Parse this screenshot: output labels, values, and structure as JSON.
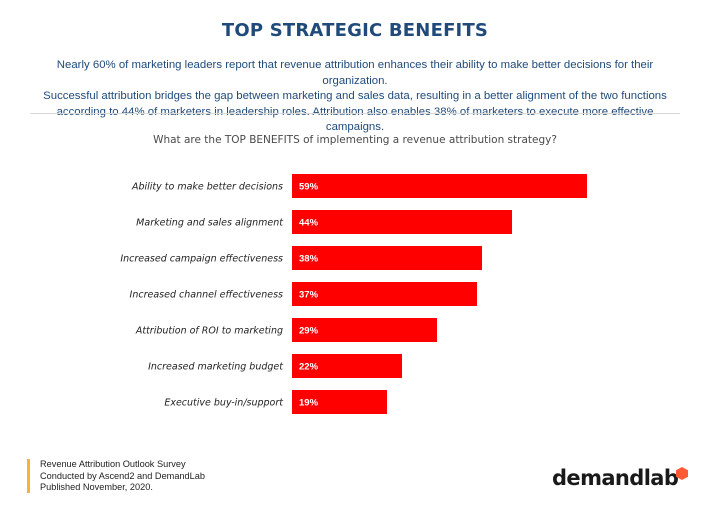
{
  "title": "TOP STRATEGIC BENEFITS",
  "intro": [
    "Nearly 60% of marketing leaders report that revenue attribution enhances their ability to make better decisions for their organization.",
    "Successful attribution bridges the gap between marketing and sales data, resulting in a better alignment of the two functions",
    "according to 44% of marketers in leadership roles. Attribution also enables 38% of marketers to execute more effective campaigns."
  ],
  "footer": {
    "line1": "Revenue Attribution Outlook Survey",
    "line2": "Conducted by Ascend2 and DemandLab",
    "line3": "Published November, 2020."
  },
  "logo_text": "demandlab",
  "colors": {
    "title": "#1f4a7a",
    "bar": "#ff0000",
    "bar_label": "#ffffff",
    "footer_accent": "#f2b632",
    "logo_mark": "#ff5a36"
  },
  "chart_data": {
    "type": "bar",
    "orientation": "horizontal",
    "title": "What are the TOP BENEFITS of implementing a revenue attribution strategy?",
    "categories": [
      "Ability to make better decisions",
      "Marketing and sales alignment",
      "Increased campaign effectiveness",
      "Increased channel effectiveness",
      "Attribution of ROI to marketing",
      "Increased marketing budget",
      "Executive buy-in/support"
    ],
    "values": [
      59,
      44,
      38,
      37,
      29,
      22,
      19
    ],
    "value_labels": [
      "59%",
      "44%",
      "38%",
      "37%",
      "29%",
      "22%",
      "19%"
    ],
    "unit": "%",
    "xlim": [
      0,
      60
    ],
    "grid": false,
    "legend": "none"
  }
}
